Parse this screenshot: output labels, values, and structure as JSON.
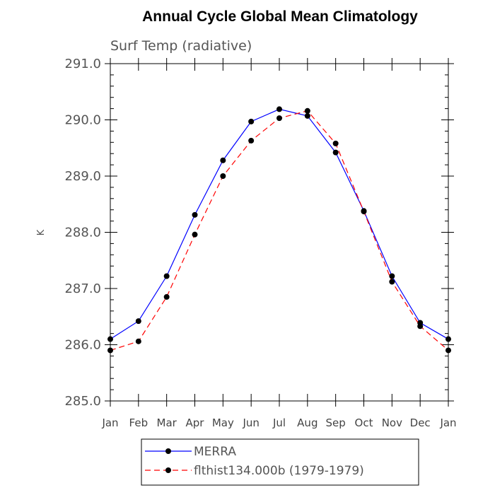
{
  "chart_data": {
    "type": "line",
    "title": "Annual Cycle Global Mean Climatology",
    "subtitle": "Surf Temp (radiative)",
    "xlabel": "",
    "ylabel": "K",
    "categories": [
      "Jan",
      "Feb",
      "Mar",
      "Apr",
      "May",
      "Jun",
      "Jul",
      "Aug",
      "Sep",
      "Oct",
      "Nov",
      "Dec",
      "Jan"
    ],
    "ylim": [
      285.0,
      291.0
    ],
    "yticks": [
      "285.0",
      "286.0",
      "287.0",
      "288.0",
      "289.0",
      "290.0",
      "291.0"
    ],
    "grid": false,
    "legend_position": "bottom",
    "series": [
      {
        "name": "MERRA",
        "color": "#0000ff",
        "line_style": "solid",
        "values": [
          286.1,
          286.42,
          287.22,
          288.31,
          289.28,
          289.97,
          290.19,
          290.07,
          289.42,
          288.38,
          287.22,
          286.39,
          286.1
        ]
      },
      {
        "name": "flthist134.000b (1979-1979)",
        "color": "#ff0000",
        "line_style": "dashed",
        "values": [
          285.9,
          286.06,
          286.85,
          287.96,
          289.0,
          289.63,
          290.03,
          290.16,
          289.58,
          288.37,
          287.12,
          286.33,
          285.9
        ]
      }
    ]
  }
}
